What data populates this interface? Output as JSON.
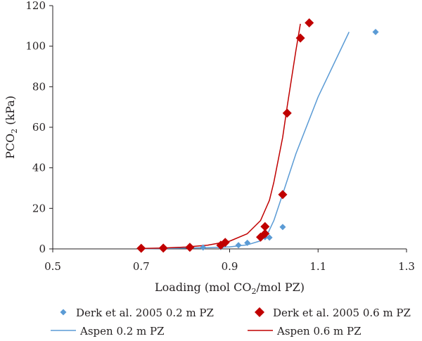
{
  "chart_data": {
    "type": "scatter",
    "xlabel_main": "Loading (mol CO",
    "xlabel_sub": "2",
    "xlabel_rest": "/mol PZ)",
    "ylabel_main": "PCO",
    "ylabel_sub": "2",
    "ylabel_rest": " (kPa)",
    "xlim": [
      0.5,
      1.3
    ],
    "ylim": [
      0,
      120
    ],
    "xticks": [
      0.5,
      0.7,
      0.9,
      1.1,
      1.3
    ],
    "xtick_labels": [
      "0.5",
      "0.7",
      "0.9",
      "1.1",
      "1.3"
    ],
    "yticks": [
      0,
      20,
      40,
      60,
      80,
      100,
      120
    ],
    "ytick_labels": [
      "0",
      "20",
      "40",
      "60",
      "80",
      "100",
      "120"
    ],
    "grid": false,
    "legend_position": "bottom",
    "series": [
      {
        "name": "Derk et al. 2005 0.2 m PZ",
        "kind": "points",
        "marker": "diamond-small",
        "color": "#5b9bd5",
        "x": [
          0.7,
          0.75,
          0.81,
          0.84,
          0.88,
          0.92,
          0.94,
          0.98,
          0.99,
          1.02,
          1.23
        ],
        "y": [
          0.2,
          0.3,
          0.4,
          0.7,
          0.9,
          1.8,
          3.0,
          5.8,
          5.6,
          10.8,
          107.0
        ]
      },
      {
        "name": "Derk et al. 2005 0.6 m PZ",
        "kind": "points",
        "marker": "diamond-large",
        "color": "#c00000",
        "x": [
          0.7,
          0.75,
          0.81,
          0.88,
          0.89,
          0.97,
          0.98,
          0.98,
          1.02,
          1.03,
          1.06,
          1.08
        ],
        "y": [
          0.3,
          0.4,
          0.8,
          1.8,
          3.2,
          5.8,
          7.5,
          11.0,
          26.8,
          67.0,
          104.0,
          111.5
        ]
      },
      {
        "name": "Aspen 0.2 m PZ",
        "kind": "line",
        "color": "#5b9bd5",
        "x": [
          0.7,
          0.75,
          0.8,
          0.85,
          0.9,
          0.94,
          0.97,
          0.985,
          1.0,
          1.02,
          1.05,
          1.1,
          1.17
        ],
        "y": [
          0.1,
          0.2,
          0.4,
          0.6,
          1.0,
          2.0,
          4.0,
          7.0,
          14.0,
          27.0,
          47.0,
          75.0,
          107.0
        ]
      },
      {
        "name": "Aspen 0.6 m PZ",
        "kind": "line",
        "color": "#c00000",
        "x": [
          0.7,
          0.75,
          0.8,
          0.85,
          0.9,
          0.94,
          0.97,
          0.99,
          1.0,
          1.02,
          1.03,
          1.04,
          1.05,
          1.06
        ],
        "y": [
          0.2,
          0.4,
          0.9,
          1.8,
          3.8,
          7.5,
          14.0,
          24.0,
          33.0,
          55.0,
          70.0,
          84.0,
          98.0,
          111.0
        ]
      }
    ]
  }
}
